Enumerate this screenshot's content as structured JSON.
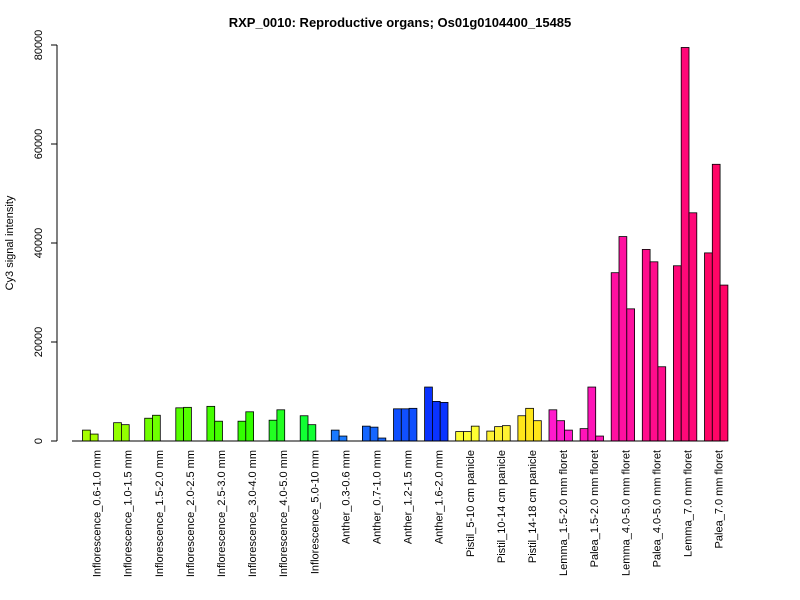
{
  "chart_data": {
    "type": "bar",
    "title": "RXP_0010: Reproductive organs; Os01g0104400_15485",
    "xlabel": "",
    "ylabel": "Cy3 signal intensity",
    "ylim": [
      0,
      80000
    ],
    "yticks": [
      0,
      20000,
      40000,
      60000,
      80000
    ],
    "grid": false,
    "groups": [
      {
        "label": "Inflorescence_0.6-1.0 mm",
        "color": "#a6ff00",
        "values": [
          2200,
          1400
        ]
      },
      {
        "label": "Inflorescence_1.0-1.5 mm",
        "color": "#94ff00",
        "values": [
          3700,
          3300
        ]
      },
      {
        "label": "Inflorescence_1.5-2.0 mm",
        "color": "#6fff00",
        "values": [
          4600,
          5200
        ]
      },
      {
        "label": "Inflorescence_2.0-2.5 mm",
        "color": "#55ff00",
        "values": [
          6700,
          6800
        ]
      },
      {
        "label": "Inflorescence_2.5-3.0 mm",
        "color": "#44ff00",
        "values": [
          7000,
          4000
        ]
      },
      {
        "label": "Inflorescence_3.0-4.0 mm",
        "color": "#33ff00",
        "values": [
          4000,
          5900
        ]
      },
      {
        "label": "Inflorescence_4.0-5.0 mm",
        "color": "#22ff22",
        "values": [
          4200,
          6300
        ]
      },
      {
        "label": "Inflorescence_5.0-10 mm",
        "color": "#11ff33",
        "values": [
          5100,
          3300
        ]
      },
      {
        "label": "Anther_0.3-0.6 mm",
        "color": "#1a7aff",
        "values": [
          2200,
          1000
        ]
      },
      {
        "label": "Anther_0.7-1.0 mm",
        "color": "#1566ff",
        "values": [
          3000,
          2800,
          600
        ]
      },
      {
        "label": "Anther_1.2-1.5 mm",
        "color": "#1050ff",
        "values": [
          6500,
          6500,
          6600
        ]
      },
      {
        "label": "Anther_1.6-2.0 mm",
        "color": "#0a33ff",
        "values": [
          10900,
          8000,
          7800
        ]
      },
      {
        "label": "Pistil_5-10 cm panicle",
        "color": "#ffff33",
        "values": [
          1900,
          1900,
          3000
        ]
      },
      {
        "label": "Pistil_10-14 cm panicle",
        "color": "#fff233",
        "values": [
          2000,
          2900,
          3100
        ]
      },
      {
        "label": "Pistil_14-18 cm panicle",
        "color": "#ffe61a",
        "values": [
          5100,
          6600,
          4100
        ]
      },
      {
        "label": "Lemma_1.5-2.0 mm floret",
        "color": "#ff1acc",
        "values": [
          6300,
          4100,
          2200
        ]
      },
      {
        "label": "Palea_1.5-2.0 mm floret",
        "color": "#ff14b8",
        "values": [
          2500,
          10900,
          1000
        ]
      },
      {
        "label": "Lemma_4.0-5.0 mm floret",
        "color": "#ff10a0",
        "values": [
          34000,
          41300,
          26700
        ]
      },
      {
        "label": "Palea_4.0-5.0 mm floret",
        "color": "#ff0c8c",
        "values": [
          38700,
          36200,
          15000
        ]
      },
      {
        "label": "Lemma_7.0 mm floret",
        "color": "#ff0878",
        "values": [
          35400,
          79500,
          46100
        ]
      },
      {
        "label": "Palea_7.0 mm floret",
        "color": "#ff0566",
        "values": [
          38000,
          55900,
          31500
        ]
      }
    ]
  }
}
